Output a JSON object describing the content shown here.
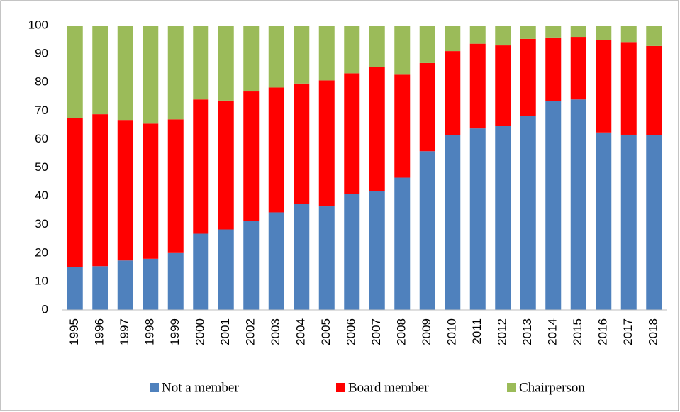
{
  "chart_data": {
    "type": "stacked_bar",
    "categories": [
      "1995",
      "1996",
      "1997",
      "1998",
      "1999",
      "2000",
      "2001",
      "2002",
      "2003",
      "2004",
      "2005",
      "2006",
      "2007",
      "2008",
      "2009",
      "2010",
      "2011",
      "2012",
      "2013",
      "2014",
      "2015",
      "2016",
      "2017",
      "2018"
    ],
    "series": [
      {
        "name": "Not a member",
        "color": "#4f81bd",
        "values": [
          15.2,
          15.4,
          17.4,
          18.0,
          20.0,
          26.8,
          28.3,
          31.4,
          34.3,
          37.3,
          36.4,
          40.8,
          41.8,
          46.5,
          55.8,
          61.5,
          63.8,
          64.6,
          68.3,
          73.5,
          74.0,
          62.4,
          61.6,
          61.5
        ]
      },
      {
        "name": "Board member",
        "color": "#ff0000",
        "values": [
          52.3,
          53.4,
          49.4,
          47.5,
          47.0,
          47.2,
          45.3,
          45.4,
          43.9,
          42.3,
          44.3,
          42.4,
          43.5,
          36.2,
          31.0,
          29.5,
          29.8,
          28.4,
          27.0,
          22.3,
          22.0,
          32.4,
          32.6,
          31.3
        ]
      },
      {
        "name": "Chairperson",
        "color": "#9bbb59",
        "values": [
          32.5,
          31.2,
          33.2,
          34.5,
          33.0,
          26.0,
          26.4,
          23.2,
          21.8,
          20.4,
          19.3,
          16.8,
          14.7,
          17.3,
          13.2,
          9.0,
          6.4,
          7.0,
          4.7,
          4.2,
          4.0,
          5.2,
          5.8,
          7.2
        ]
      }
    ],
    "ylim": [
      0,
      100
    ],
    "yticks": [
      0,
      10,
      20,
      30,
      40,
      50,
      60,
      70,
      80,
      90,
      100
    ],
    "grid": false,
    "legend": "bottom"
  }
}
